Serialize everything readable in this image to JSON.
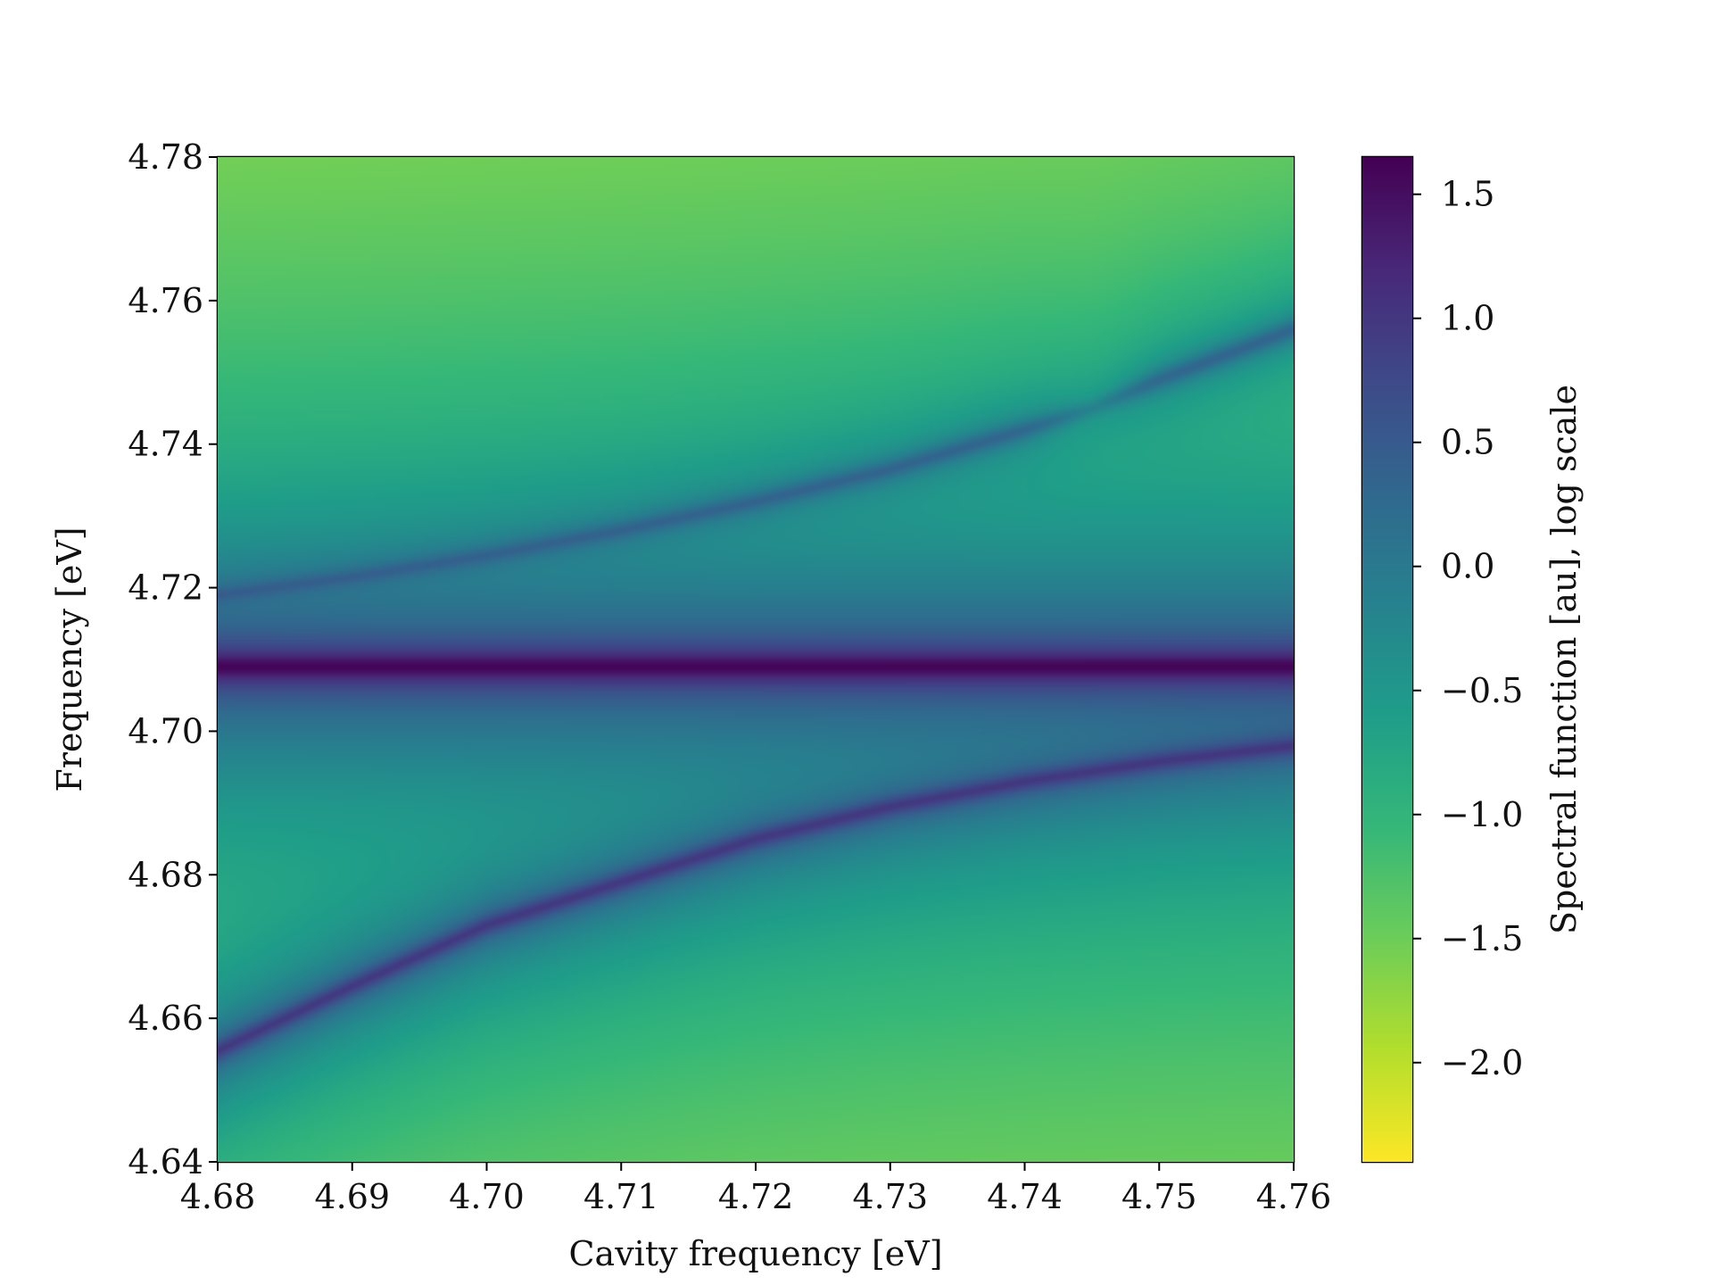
{
  "chart_data": {
    "type": "heatmap",
    "title": "",
    "xlabel": "Cavity frequency [eV]",
    "ylabel": "Frequency [eV]",
    "xlim": [
      4.68,
      4.76
    ],
    "ylim": [
      4.64,
      4.78
    ],
    "x_ticks": [
      "4.68",
      "4.69",
      "4.70",
      "4.71",
      "4.72",
      "4.73",
      "4.74",
      "4.75",
      "4.76"
    ],
    "x_tick_values": [
      4.68,
      4.69,
      4.7,
      4.71,
      4.72,
      4.73,
      4.74,
      4.75,
      4.76
    ],
    "y_ticks": [
      "4.64",
      "4.66",
      "4.68",
      "4.70",
      "4.72",
      "4.74",
      "4.76",
      "4.78"
    ],
    "y_tick_values": [
      4.64,
      4.66,
      4.68,
      4.7,
      4.72,
      4.74,
      4.76,
      4.78
    ],
    "colormap": "viridis_r",
    "colorbar": {
      "label": "Spectral function [au], log scale",
      "range": [
        -2.4,
        1.65
      ],
      "ticks": [
        "1.5",
        "1.0",
        "0.5",
        "0.0",
        "−0.5",
        "−1.0",
        "−1.5",
        "−2.0"
      ],
      "tick_values": [
        1.5,
        1.0,
        0.5,
        0.0,
        -0.5,
        -1.0,
        -1.5,
        -2.0
      ]
    },
    "features": {
      "flat_band": {
        "frequency": 4.709,
        "peak_value": 1.6
      },
      "upper_branch": {
        "x": [
          4.68,
          4.69,
          4.7,
          4.71,
          4.72,
          4.73,
          4.74,
          4.745,
          4.75,
          4.76
        ],
        "y": [
          4.719,
          4.7215,
          4.7245,
          4.728,
          4.732,
          4.7365,
          4.742,
          4.745,
          4.749,
          4.756
        ],
        "peak_value": 0.9
      },
      "lower_branch": {
        "x": [
          4.68,
          4.69,
          4.7,
          4.71,
          4.72,
          4.73,
          4.74,
          4.75,
          4.76
        ],
        "y": [
          4.6555,
          4.6645,
          4.673,
          4.679,
          4.685,
          4.6895,
          4.693,
          4.6958,
          4.698
        ],
        "peak_value": 1.4
      }
    },
    "grid": false,
    "legend": "none"
  }
}
